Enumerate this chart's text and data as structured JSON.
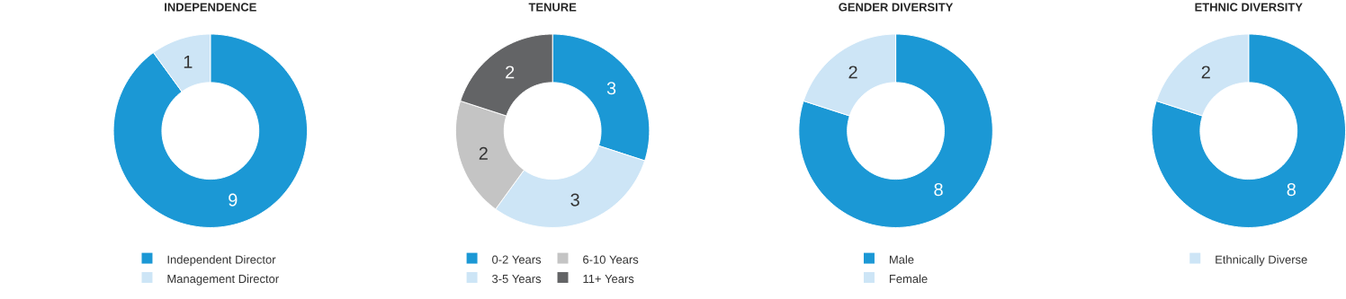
{
  "chart_data": [
    {
      "type": "donut",
      "title": "INDEPENDENCE",
      "categories": [
        "Independent Director",
        "Management Director"
      ],
      "values": [
        9,
        1
      ],
      "colors": [
        "#1b98d5",
        "#cde5f6"
      ],
      "data_labels": true,
      "legend": "bottom"
    },
    {
      "type": "donut",
      "title": "TENURE",
      "categories": [
        "0-2 Years",
        "3-5 Years",
        "6-10 Years",
        "11+ Years"
      ],
      "values": [
        3,
        3,
        2,
        2
      ],
      "colors": [
        "#1b98d5",
        "#cde5f6",
        "#c4c4c4",
        "#636466"
      ],
      "data_labels": true,
      "legend": "bottom"
    },
    {
      "type": "donut",
      "title": "GENDER DIVERSITY",
      "categories": [
        "Male",
        "Female"
      ],
      "values": [
        8,
        2
      ],
      "colors": [
        "#1b98d5",
        "#cde5f6"
      ],
      "data_labels": true,
      "legend": "bottom"
    },
    {
      "type": "donut",
      "title": "ETHNIC DIVERSITY",
      "categories": [
        null,
        "Ethnically Diverse"
      ],
      "values": [
        8,
        2
      ],
      "colors": [
        "#1b98d5",
        "#cde5f6"
      ],
      "data_labels": true,
      "legend": "bottom"
    }
  ]
}
